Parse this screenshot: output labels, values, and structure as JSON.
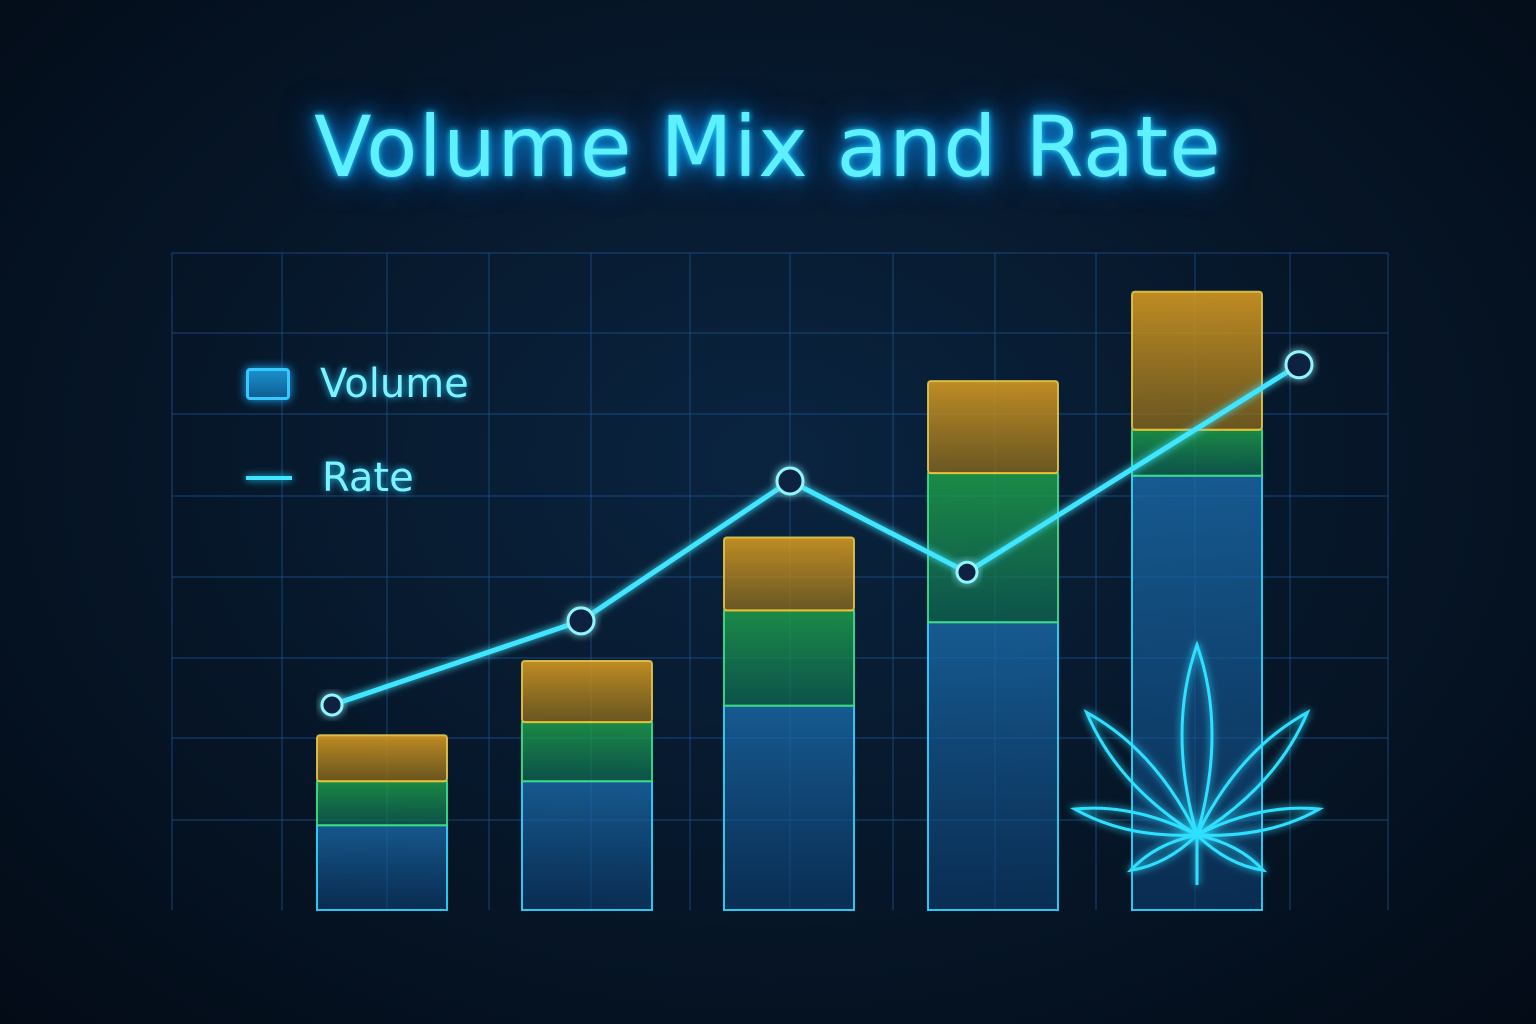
{
  "chart_data": {
    "type": "bar",
    "stacked": true,
    "title": "Volume Mix and Rate",
    "xlabel": "",
    "ylabel": "",
    "ylim": [
      0,
      100
    ],
    "grid": true,
    "legend_position": "top-left",
    "categories": [
      "",
      "",
      "",
      "",
      ""
    ],
    "series": [
      {
        "name": "Volume",
        "role": "bar-segment-bottom",
        "color": "#1b6fb0",
        "values": [
          12.9,
          19.6,
          31.1,
          43.8,
          66.1
        ]
      },
      {
        "role": "bar-segment-middle",
        "color": "#1fa64a",
        "values": [
          6.7,
          9.0,
          14.5,
          22.7,
          7.0
        ]
      },
      {
        "role": "bar-segment-top",
        "color": "#e0a020",
        "values": [
          7.0,
          9.3,
          11.1,
          14.0,
          21.0
        ]
      },
      {
        "name": "Rate",
        "type": "line",
        "color": "#3fe6ff",
        "values": [
          31.2,
          44.0,
          65.3,
          51.4,
          83.0
        ]
      }
    ],
    "legend": [
      {
        "label": "Volume",
        "symbol": "box"
      },
      {
        "label": "Rate",
        "symbol": "line"
      }
    ],
    "decoration": "cannabis-leaf-icon"
  }
}
